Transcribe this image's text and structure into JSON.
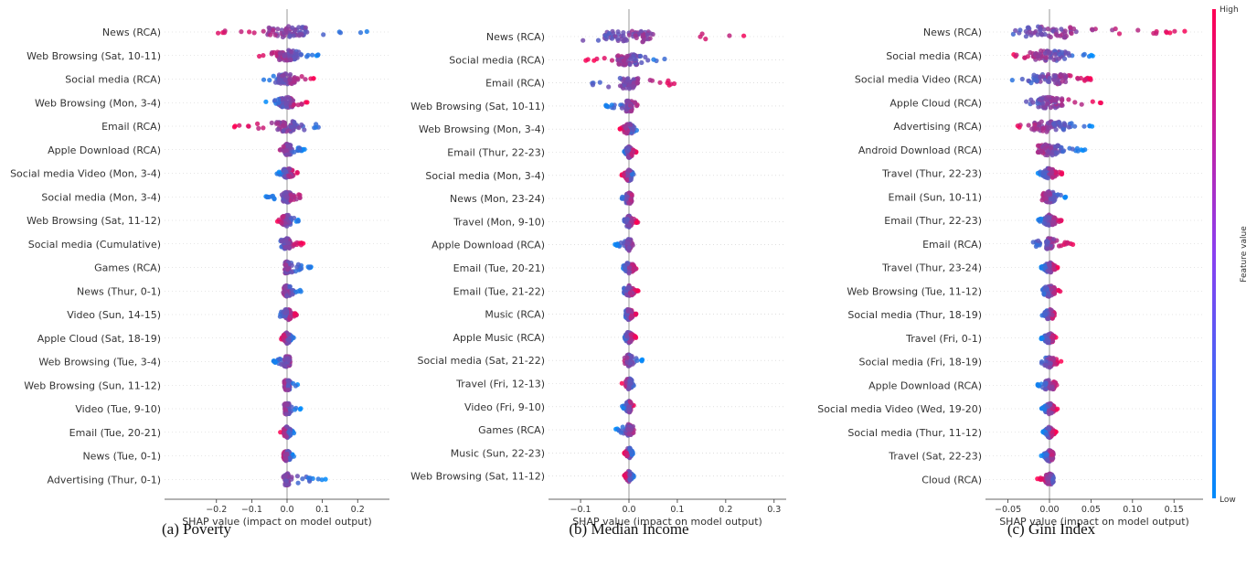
{
  "colors": {
    "low": "#008bfb",
    "high": "#ff0052",
    "zero_line": "#999999",
    "axis": "#333333"
  },
  "colorbar": {
    "high_label": "High",
    "low_label": "Low",
    "title": "Feature value"
  },
  "chart_data": [
    {
      "type": "scatter",
      "subtype": "shap-beeswarm",
      "caption": "(a) Poverty",
      "xlabel": "SHAP value (impact on model output)",
      "xlim": [
        -0.29,
        0.29
      ],
      "xticks": [
        -0.2,
        -0.1,
        0.0,
        0.1,
        0.2
      ],
      "xtick_labels": [
        "−0.2",
        "−0.1",
        "0.0",
        "0.1",
        "0.2"
      ],
      "features": [
        {
          "name": "News (RCA)",
          "min": -0.24,
          "max": 0.23,
          "core": 0.06,
          "low_side": "right"
        },
        {
          "name": "Web Browsing (Sat, 10-11)",
          "min": -0.08,
          "max": 0.09,
          "core": 0.03,
          "low_side": "right"
        },
        {
          "name": "Social media (RCA)",
          "min": -0.07,
          "max": 0.08,
          "core": 0.025,
          "low_side": "left"
        },
        {
          "name": "Web Browsing (Mon, 3-4)",
          "min": -0.06,
          "max": 0.06,
          "core": 0.02,
          "low_side": "left"
        },
        {
          "name": "Email (RCA)",
          "min": -0.15,
          "max": 0.09,
          "core": 0.03,
          "low_side": "right"
        },
        {
          "name": "Apple Download (RCA)",
          "min": -0.02,
          "max": 0.05,
          "core": 0.012,
          "low_side": "right"
        },
        {
          "name": "Social media Video (Mon, 3-4)",
          "min": -0.03,
          "max": 0.03,
          "core": 0.012,
          "low_side": "left"
        },
        {
          "name": "Social media (Mon, 3-4)",
          "min": -0.06,
          "max": 0.04,
          "core": 0.012,
          "low_side": "left"
        },
        {
          "name": "Web Browsing (Sat, 11-12)",
          "min": -0.035,
          "max": 0.035,
          "core": 0.012,
          "low_side": "right"
        },
        {
          "name": "Social media (Cumulative)",
          "min": -0.02,
          "max": 0.05,
          "core": 0.01,
          "low_side": "left"
        },
        {
          "name": "Games (RCA)",
          "min": -0.01,
          "max": 0.07,
          "core": 0.006,
          "low_side": "right"
        },
        {
          "name": "News (Thur, 0-1)",
          "min": -0.02,
          "max": 0.04,
          "core": 0.008,
          "low_side": "right"
        },
        {
          "name": "Video (Sun, 14-15)",
          "min": -0.02,
          "max": 0.03,
          "core": 0.01,
          "low_side": "left"
        },
        {
          "name": "Apple Cloud (Sat, 18-19)",
          "min": -0.02,
          "max": 0.02,
          "core": 0.012,
          "low_side": "right"
        },
        {
          "name": "Web Browsing (Tue, 3-4)",
          "min": -0.04,
          "max": 0.01,
          "core": 0.008,
          "low_side": "left"
        },
        {
          "name": "Web Browsing (Sun, 11-12)",
          "min": -0.02,
          "max": 0.03,
          "core": 0.008,
          "low_side": "right"
        },
        {
          "name": "Video (Tue, 9-10)",
          "min": -0.01,
          "max": 0.04,
          "core": 0.006,
          "low_side": "right"
        },
        {
          "name": "Email (Tue, 20-21)",
          "min": -0.02,
          "max": 0.02,
          "core": 0.01,
          "low_side": "right"
        },
        {
          "name": "News (Tue, 0-1)",
          "min": -0.01,
          "max": 0.02,
          "core": 0.008,
          "low_side": "right"
        },
        {
          "name": "Advertising (Thur, 0-1)",
          "min": -0.02,
          "max": 0.11,
          "core": 0.006,
          "low_side": "right"
        }
      ]
    },
    {
      "type": "scatter",
      "subtype": "shap-beeswarm",
      "caption": "(b) Median Income",
      "xlabel": "SHAP value (impact on model output)",
      "xlim": [
        -0.165,
        0.325
      ],
      "xticks": [
        -0.1,
        0.0,
        0.1,
        0.2,
        0.3
      ],
      "xtick_labels": [
        "−0.1",
        "0.0",
        "0.1",
        "0.2",
        "0.3"
      ],
      "features": [
        {
          "name": "News (RCA)",
          "min": -0.12,
          "max": 0.31,
          "core": 0.05,
          "low_side": "left"
        },
        {
          "name": "Social media (RCA)",
          "min": -0.09,
          "max": 0.095,
          "core": 0.025,
          "low_side": "right"
        },
        {
          "name": "Email (RCA)",
          "min": -0.08,
          "max": 0.14,
          "core": 0.02,
          "low_side": "left"
        },
        {
          "name": "Web Browsing (Sat, 10-11)",
          "min": -0.05,
          "max": 0.02,
          "core": 0.006,
          "low_side": "left"
        },
        {
          "name": "Web Browsing (Mon, 3-4)",
          "min": -0.02,
          "max": 0.02,
          "core": 0.007,
          "low_side": "right"
        },
        {
          "name": "Email (Thur, 22-23)",
          "min": -0.01,
          "max": 0.015,
          "core": 0.006,
          "low_side": "left"
        },
        {
          "name": "Social media (Mon, 3-4)",
          "min": -0.015,
          "max": 0.01,
          "core": 0.007,
          "low_side": "right"
        },
        {
          "name": "News (Mon, 23-24)",
          "min": -0.02,
          "max": 0.01,
          "core": 0.006,
          "low_side": "left"
        },
        {
          "name": "Travel (Mon, 9-10)",
          "min": -0.01,
          "max": 0.02,
          "core": 0.005,
          "low_side": "left"
        },
        {
          "name": "Apple Download (RCA)",
          "min": -0.03,
          "max": 0.01,
          "core": 0.004,
          "low_side": "left"
        },
        {
          "name": "Email (Tue, 20-21)",
          "min": -0.015,
          "max": 0.02,
          "core": 0.01,
          "low_side": "left"
        },
        {
          "name": "Email (Tue, 21-22)",
          "min": -0.01,
          "max": 0.02,
          "core": 0.011,
          "low_side": "left"
        },
        {
          "name": "Music (RCA)",
          "min": -0.01,
          "max": 0.015,
          "core": 0.007,
          "low_side": "left"
        },
        {
          "name": "Apple Music (RCA)",
          "min": -0.01,
          "max": 0.015,
          "core": 0.007,
          "low_side": "left"
        },
        {
          "name": "Social media (Sat, 21-22)",
          "min": -0.01,
          "max": 0.03,
          "core": 0.004,
          "low_side": "right"
        },
        {
          "name": "Travel (Fri, 12-13)",
          "min": -0.015,
          "max": 0.01,
          "core": 0.006,
          "low_side": "right"
        },
        {
          "name": "Video (Fri, 9-10)",
          "min": -0.015,
          "max": 0.01,
          "core": 0.005,
          "low_side": "left"
        },
        {
          "name": "Games (RCA)",
          "min": -0.03,
          "max": 0.01,
          "core": 0.004,
          "low_side": "left"
        },
        {
          "name": "Music (Sun, 22-23)",
          "min": -0.01,
          "max": 0.01,
          "core": 0.007,
          "low_side": "right"
        },
        {
          "name": "Web Browsing (Sat, 11-12)",
          "min": -0.01,
          "max": 0.01,
          "core": 0.008,
          "low_side": "right"
        }
      ]
    },
    {
      "type": "scatter",
      "subtype": "shap-beeswarm",
      "caption": "(c) Gini Index",
      "xlabel": "SHAP value (impact on model output)",
      "xlim": [
        -0.075,
        0.185
      ],
      "xticks": [
        -0.05,
        0.0,
        0.05,
        0.1,
        0.15
      ],
      "xtick_labels": [
        "−0.05",
        "0.00",
        "0.05",
        "0.10",
        "0.15"
      ],
      "features": [
        {
          "name": "News (RCA)",
          "min": -0.055,
          "max": 0.18,
          "core": 0.03,
          "low_side": "left"
        },
        {
          "name": "Social media (RCA)",
          "min": -0.045,
          "max": 0.055,
          "core": 0.02,
          "low_side": "right"
        },
        {
          "name": "Social media Video (RCA)",
          "min": -0.045,
          "max": 0.06,
          "core": 0.02,
          "low_side": "left"
        },
        {
          "name": "Apple Cloud (RCA)",
          "min": -0.03,
          "max": 0.065,
          "core": 0.016,
          "low_side": "left"
        },
        {
          "name": "Advertising (RCA)",
          "min": -0.04,
          "max": 0.055,
          "core": 0.02,
          "low_side": "right"
        },
        {
          "name": "Android Download (RCA)",
          "min": -0.015,
          "max": 0.045,
          "core": 0.014,
          "low_side": "right"
        },
        {
          "name": "Travel (Thur, 22-23)",
          "min": -0.015,
          "max": 0.015,
          "core": 0.008,
          "low_side": "left"
        },
        {
          "name": "Email (Sun, 10-11)",
          "min": -0.01,
          "max": 0.02,
          "core": 0.008,
          "low_side": "right"
        },
        {
          "name": "Email (Thur, 22-23)",
          "min": -0.015,
          "max": 0.015,
          "core": 0.008,
          "low_side": "left"
        },
        {
          "name": "Email (RCA)",
          "min": -0.02,
          "max": 0.03,
          "core": 0.004,
          "low_side": "left"
        },
        {
          "name": "Travel (Thur, 23-24)",
          "min": -0.01,
          "max": 0.01,
          "core": 0.007,
          "low_side": "left"
        },
        {
          "name": "Web Browsing (Tue, 11-12)",
          "min": -0.01,
          "max": 0.015,
          "core": 0.007,
          "low_side": "left"
        },
        {
          "name": "Social media (Thur, 18-19)",
          "min": -0.01,
          "max": 0.01,
          "core": 0.006,
          "low_side": "left"
        },
        {
          "name": "Travel (Fri, 0-1)",
          "min": -0.01,
          "max": 0.01,
          "core": 0.006,
          "low_side": "left"
        },
        {
          "name": "Social media (Fri, 18-19)",
          "min": -0.01,
          "max": 0.015,
          "core": 0.005,
          "low_side": "left"
        },
        {
          "name": "Apple Download (RCA)",
          "min": -0.015,
          "max": 0.01,
          "core": 0.006,
          "low_side": "left"
        },
        {
          "name": "Social media Video (Wed, 19-20)",
          "min": -0.01,
          "max": 0.01,
          "core": 0.006,
          "low_side": "left"
        },
        {
          "name": "Social media (Thur, 11-12)",
          "min": -0.008,
          "max": 0.008,
          "core": 0.006,
          "low_side": "left"
        },
        {
          "name": "Travel (Sat, 22-23)",
          "min": -0.01,
          "max": 0.005,
          "core": 0.005,
          "low_side": "left"
        },
        {
          "name": "Cloud (RCA)",
          "min": -0.015,
          "max": 0.005,
          "core": 0.005,
          "low_side": "right"
        }
      ]
    }
  ]
}
